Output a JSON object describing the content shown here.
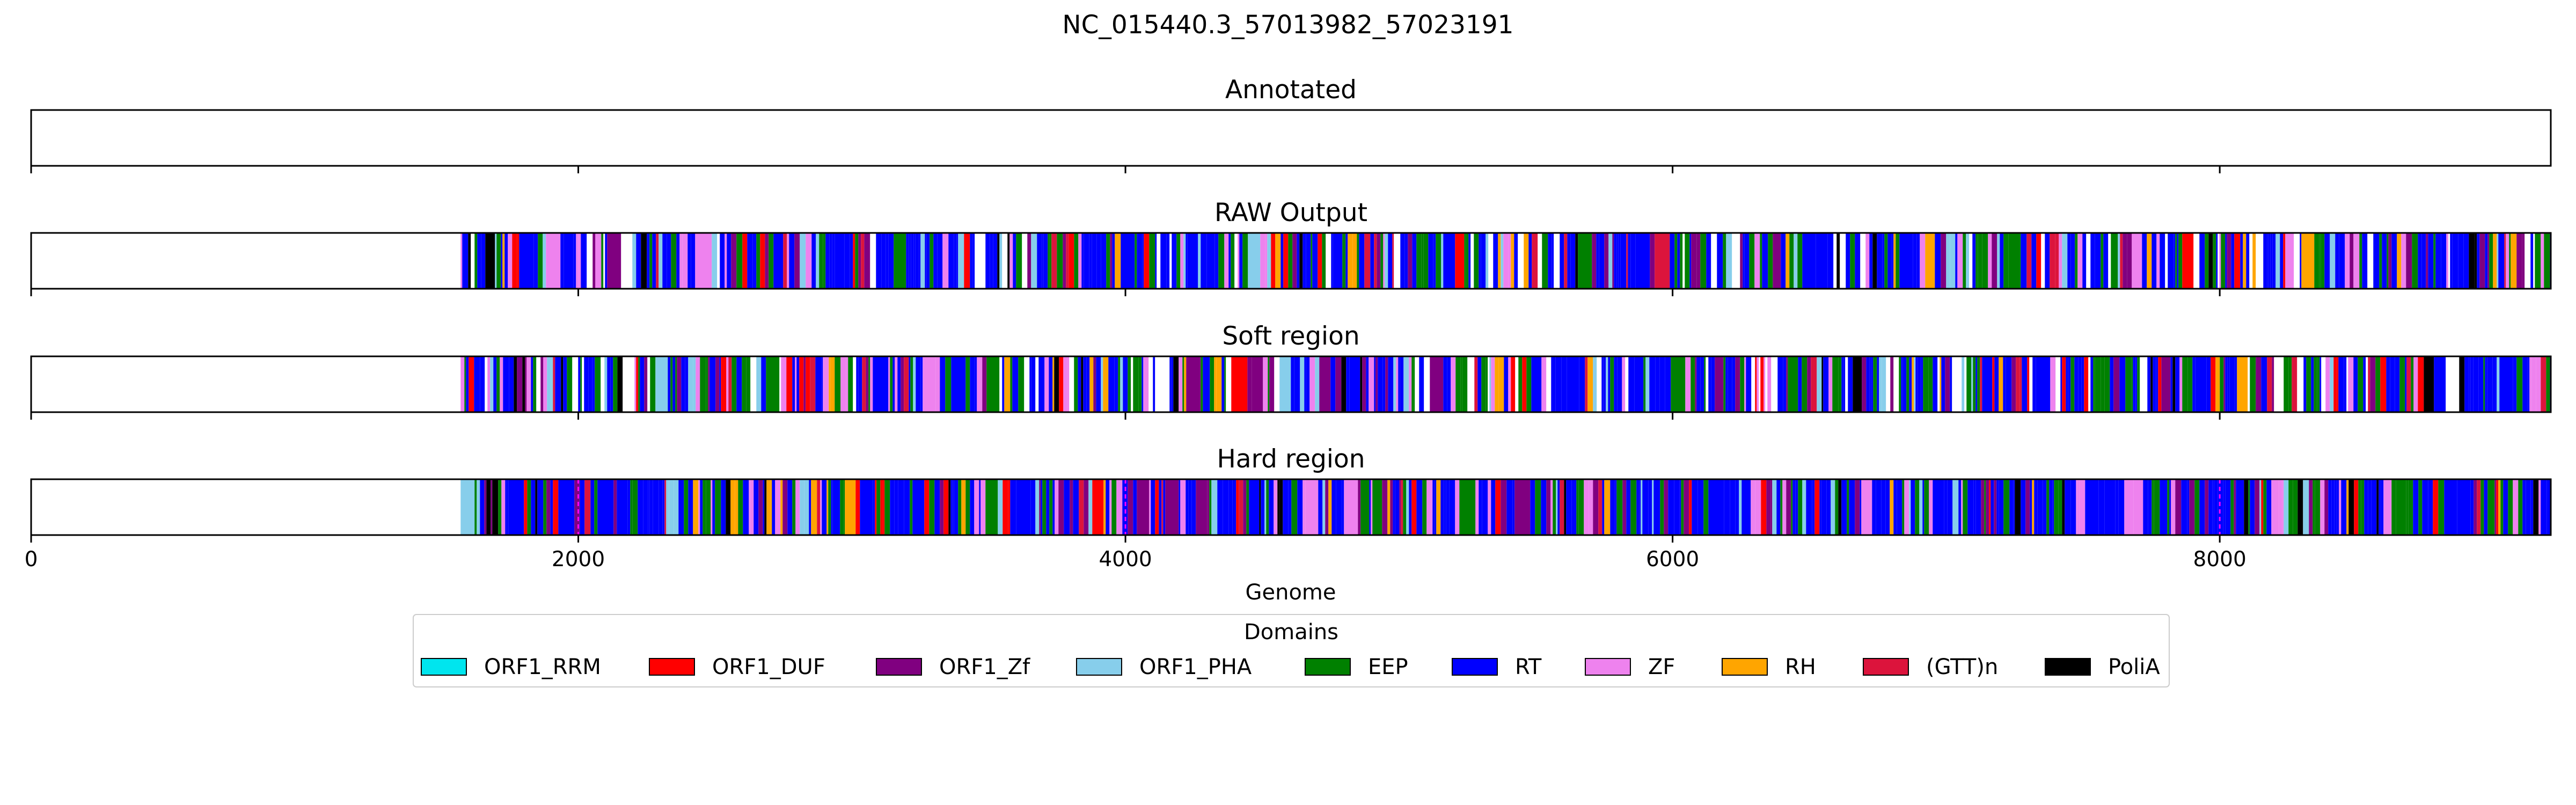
{
  "chart_data": {
    "type": "bar",
    "title": "NC_015440.3_57013982_57023191",
    "xlabel": "Genome",
    "xlim": [
      0,
      9210
    ],
    "x_ticks": [
      0,
      2000,
      4000,
      6000,
      8000
    ],
    "x_tick_labels": [
      "0",
      "2000",
      "4000",
      "6000",
      "8000"
    ],
    "panels": [
      {
        "title": "Annotated",
        "segments": []
      },
      {
        "title": "RAW Output",
        "region_start": 1570,
        "region_end": 9210,
        "domain_mix": [
          "RT",
          "EEP",
          "ZF",
          "ORF1_Zf",
          "ORF1_PHA",
          "RH",
          "ORF1_DUF",
          "(GTT)n",
          "PoliA"
        ],
        "has_gaps": true
      },
      {
        "title": "Soft region",
        "region_start": 1570,
        "region_end": 9210,
        "domain_mix": [
          "RT",
          "EEP",
          "ZF",
          "ORF1_Zf",
          "ORF1_PHA",
          "RH",
          "ORF1_DUF",
          "(GTT)n",
          "PoliA"
        ],
        "has_gaps": true
      },
      {
        "title": "Hard region",
        "region_start": 1570,
        "region_end": 9210,
        "domain_mix": [
          "RT",
          "EEP",
          "ZF",
          "ORF1_Zf",
          "ORF1_PHA",
          "RH",
          "ORF1_DUF",
          "(GTT)n",
          "PoliA"
        ],
        "has_gaps": false,
        "dashed_markers": [
          2000,
          4000,
          8000
        ]
      }
    ],
    "legend": {
      "title": "Domains",
      "placement": "bottom-center",
      "items": [
        {
          "label": "ORF1_RRM",
          "color": "#00e5ee"
        },
        {
          "label": "ORF1_DUF",
          "color": "#ff0000"
        },
        {
          "label": "ORF1_Zf",
          "color": "#800080"
        },
        {
          "label": "ORF1_PHA",
          "color": "#87ceeb"
        },
        {
          "label": "EEP",
          "color": "#008000"
        },
        {
          "label": "RT",
          "color": "#0000ff"
        },
        {
          "label": "ZF",
          "color": "#ee82ee"
        },
        {
          "label": "RH",
          "color": "#ffa500"
        },
        {
          "label": "(GTT)n",
          "color": "#dc143c"
        },
        {
          "label": "PoliA",
          "color": "#000000"
        }
      ]
    },
    "grid": false
  }
}
